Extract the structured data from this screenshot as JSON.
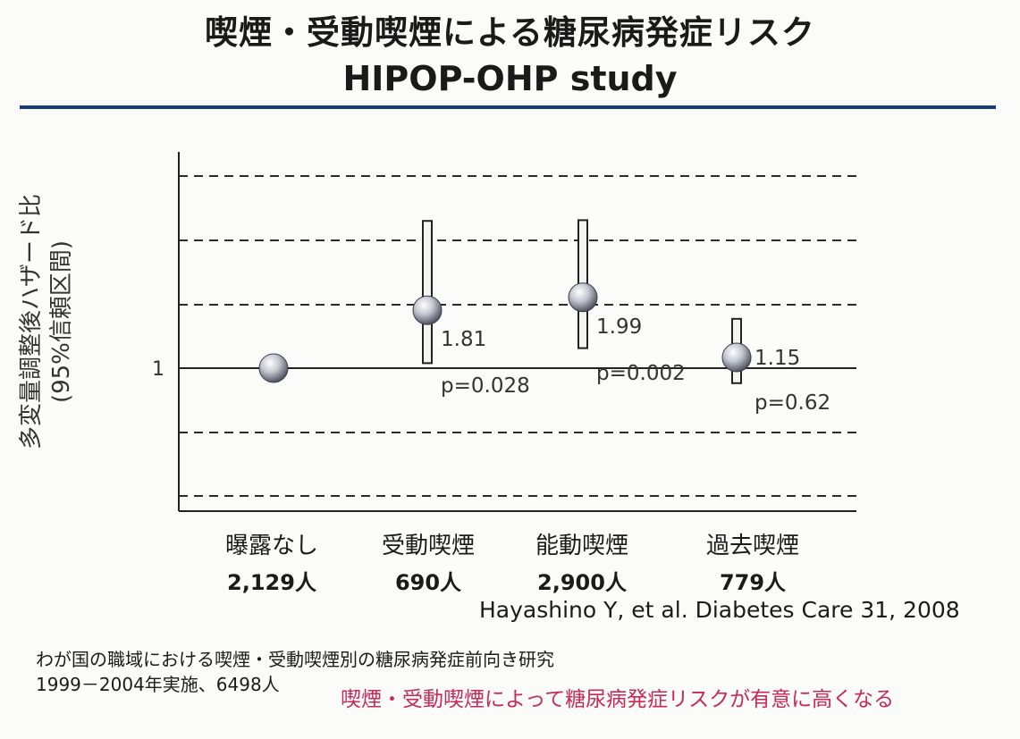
{
  "title": {
    "line1": "喫煙・受動喫煙による糖尿病発症リスク",
    "line2": "HIPOP-OHP study"
  },
  "chart_data": {
    "type": "scatter",
    "ylabel": "多変量調整後ハザード比",
    "ylabel_sub": "(95%信頼区間)",
    "y_tick_labels": [
      "1"
    ],
    "reference_line": 1,
    "grid": "dashed horizontal",
    "categories": [
      "曝露なし",
      "受動喫煙",
      "能動喫煙",
      "過去喫煙"
    ],
    "counts": [
      "2,129人",
      "690人",
      "2,900人",
      "779人"
    ],
    "values": [
      1.0,
      1.81,
      1.99,
      1.15
    ],
    "ci_low": [
      null,
      1.07,
      1.28,
      0.79
    ],
    "ci_high": [
      null,
      3.06,
      3.07,
      1.69
    ],
    "value_labels": [
      null,
      "1.81",
      "1.99",
      "1.15"
    ],
    "p_labels": [
      null,
      "p=0.028",
      "p=0.002",
      "p=0.62"
    ]
  },
  "citation": "Hayashino Y, et al. Diabetes Care 31, 2008",
  "notes": {
    "line1": "わが国の職域における喫煙・受動喫煙別の糖尿病発症前向き研究",
    "line2": "1999－2004年実施、6498人"
  },
  "conclusion": "喫煙・受動喫煙によって糖尿病発症リスクが有意に高くなる",
  "colors": {
    "rule": "#1c3d6e",
    "conclusion": "#c62b58",
    "marker": "#9aa0ad"
  }
}
